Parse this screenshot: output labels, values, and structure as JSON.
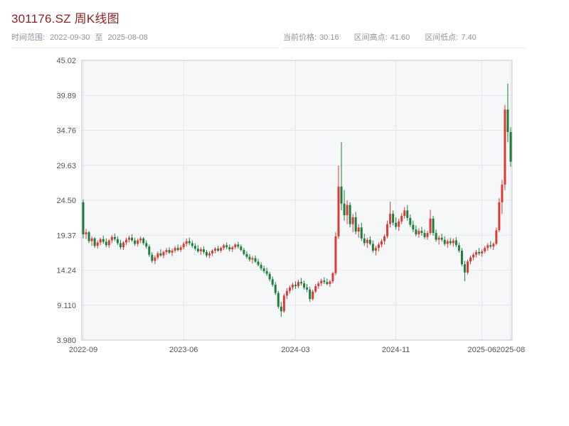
{
  "header": {
    "title": "301176.SZ 周K线图",
    "title_color": "#8b2222",
    "range": {
      "label": "时间范围:",
      "start": "2022-09-30",
      "to": "至",
      "end": "2025-08-08"
    },
    "stats": [
      {
        "label": "当前价格:",
        "value": "30.16"
      },
      {
        "label": "区间高点:",
        "value": "41.60"
      },
      {
        "label": "区间低点:",
        "value": "7.40"
      }
    ]
  },
  "chart_data": {
    "type": "candlestick",
    "title": "301176.SZ 周K线图",
    "period": "weekly",
    "date_range": [
      "2022-09-30",
      "2025-08-08"
    ],
    "current_price": 30.16,
    "range_high": 41.6,
    "range_low": 7.4,
    "ylim": [
      3.98,
      45.02
    ],
    "y_ticks": [
      "45.02",
      "39.89",
      "34.76",
      "29.63",
      "24.50",
      "19.37",
      "14.24",
      "9.110",
      "3.980"
    ],
    "x_ticks": [
      {
        "label": "2022-09",
        "index": 0
      },
      {
        "label": "2023-06",
        "index": 35
      },
      {
        "label": "2024-03",
        "index": 74
      },
      {
        "label": "2024-11",
        "index": 109
      },
      {
        "label": "2025-06",
        "index": 139
      },
      {
        "label": "2025-08",
        "index": 149
      }
    ],
    "colors": {
      "up": "#dc3c36",
      "down": "#1e7e3e",
      "plot_bg": "#f6f7f9",
      "grid": "#e4e7ec",
      "frame": "#c3c7cd",
      "tick_text": "#555555"
    },
    "candles": [
      [
        24.2,
        24.6,
        18.9,
        19.5
      ],
      [
        19.5,
        20.3,
        18.8,
        19.8
      ],
      [
        19.8,
        20.0,
        18.2,
        18.5
      ],
      [
        18.5,
        19.2,
        17.8,
        18.9
      ],
      [
        18.9,
        19.1,
        17.5,
        17.8
      ],
      [
        17.8,
        18.6,
        17.4,
        18.3
      ],
      [
        18.3,
        19.0,
        17.9,
        18.8
      ],
      [
        18.8,
        19.3,
        18.1,
        18.4
      ],
      [
        18.4,
        18.9,
        17.6,
        17.9
      ],
      [
        17.9,
        18.8,
        17.5,
        18.6
      ],
      [
        18.6,
        19.4,
        18.2,
        19.1
      ],
      [
        19.1,
        19.6,
        18.5,
        18.8
      ],
      [
        18.8,
        19.2,
        17.9,
        18.2
      ],
      [
        18.2,
        18.7,
        17.3,
        17.6
      ],
      [
        17.6,
        18.5,
        17.2,
        18.3
      ],
      [
        18.3,
        19.0,
        17.9,
        18.7
      ],
      [
        18.7,
        19.3,
        18.3,
        19.0
      ],
      [
        19.0,
        19.5,
        18.4,
        18.6
      ],
      [
        18.6,
        19.0,
        17.8,
        18.1
      ],
      [
        18.1,
        18.9,
        17.7,
        18.6
      ],
      [
        18.6,
        19.2,
        18.2,
        18.9
      ],
      [
        18.9,
        19.1,
        17.9,
        18.2
      ],
      [
        18.2,
        18.6,
        17.4,
        17.7
      ],
      [
        17.7,
        18.0,
        16.2,
        16.5
      ],
      [
        16.5,
        16.9,
        15.3,
        15.6
      ],
      [
        15.6,
        16.4,
        15.1,
        16.1
      ],
      [
        16.1,
        17.0,
        15.8,
        16.7
      ],
      [
        16.7,
        17.3,
        16.2,
        16.4
      ],
      [
        16.4,
        17.1,
        16.0,
        16.9
      ],
      [
        16.9,
        17.5,
        16.5,
        17.2
      ],
      [
        17.2,
        17.6,
        16.6,
        16.8
      ],
      [
        16.8,
        17.4,
        16.3,
        17.1
      ],
      [
        17.1,
        17.8,
        16.8,
        17.5
      ],
      [
        17.5,
        18.0,
        17.0,
        17.2
      ],
      [
        17.2,
        17.9,
        16.9,
        17.6
      ],
      [
        17.6,
        18.4,
        17.3,
        18.1
      ],
      [
        18.1,
        18.9,
        17.7,
        18.5
      ],
      [
        18.5,
        19.0,
        17.9,
        18.2
      ],
      [
        18.2,
        18.6,
        17.5,
        17.8
      ],
      [
        17.8,
        18.2,
        17.1,
        17.4
      ],
      [
        17.4,
        17.9,
        16.8,
        17.0
      ],
      [
        17.0,
        17.6,
        16.5,
        17.3
      ],
      [
        17.3,
        17.7,
        16.6,
        16.9
      ],
      [
        16.9,
        17.2,
        16.1,
        16.4
      ],
      [
        16.4,
        17.0,
        16.0,
        16.7
      ],
      [
        16.7,
        17.3,
        16.3,
        17.1
      ],
      [
        17.1,
        17.6,
        16.7,
        17.4
      ],
      [
        17.4,
        17.8,
        16.9,
        17.1
      ],
      [
        17.1,
        17.7,
        16.8,
        17.5
      ],
      [
        17.5,
        18.1,
        17.2,
        17.9
      ],
      [
        17.9,
        18.3,
        17.3,
        17.6
      ],
      [
        17.6,
        18.0,
        17.0,
        17.3
      ],
      [
        17.3,
        17.8,
        16.9,
        17.6
      ],
      [
        17.6,
        18.2,
        17.3,
        18.0
      ],
      [
        18.0,
        18.4,
        17.4,
        17.7
      ],
      [
        17.7,
        18.0,
        17.0,
        17.2
      ],
      [
        17.2,
        17.5,
        16.4,
        16.6
      ],
      [
        16.6,
        17.0,
        15.9,
        16.2
      ],
      [
        16.2,
        16.6,
        15.5,
        15.8
      ],
      [
        15.8,
        16.3,
        15.2,
        16.0
      ],
      [
        16.0,
        16.4,
        15.3,
        15.5
      ],
      [
        15.5,
        15.9,
        14.8,
        15.0
      ],
      [
        15.0,
        15.4,
        14.2,
        14.5
      ],
      [
        14.5,
        14.9,
        13.8,
        14.1
      ],
      [
        14.1,
        14.6,
        13.4,
        13.7
      ],
      [
        13.7,
        14.0,
        12.6,
        12.9
      ],
      [
        12.9,
        13.3,
        11.8,
        12.1
      ],
      [
        12.1,
        12.5,
        10.6,
        10.9
      ],
      [
        10.9,
        11.2,
        8.6,
        8.9
      ],
      [
        8.9,
        9.6,
        7.4,
        8.2
      ],
      [
        8.2,
        10.8,
        8.0,
        10.5
      ],
      [
        10.5,
        11.6,
        10.0,
        11.2
      ],
      [
        11.2,
        12.0,
        10.8,
        11.7
      ],
      [
        11.7,
        12.4,
        11.3,
        12.1
      ],
      [
        12.1,
        12.6,
        11.5,
        11.9
      ],
      [
        11.9,
        12.8,
        11.6,
        12.5
      ],
      [
        12.5,
        13.1,
        12.0,
        12.3
      ],
      [
        12.3,
        12.7,
        11.4,
        11.7
      ],
      [
        11.7,
        12.2,
        11.0,
        11.4
      ],
      [
        11.4,
        11.8,
        9.6,
        10.0
      ],
      [
        10.0,
        11.4,
        9.8,
        11.1
      ],
      [
        11.1,
        12.2,
        10.9,
        11.9
      ],
      [
        11.9,
        12.6,
        11.5,
        12.3
      ],
      [
        12.3,
        13.0,
        11.9,
        12.7
      ],
      [
        12.7,
        13.2,
        12.2,
        12.5
      ],
      [
        12.5,
        13.0,
        12.0,
        12.2
      ],
      [
        12.2,
        12.8,
        11.8,
        12.6
      ],
      [
        12.6,
        14.0,
        12.3,
        13.8
      ],
      [
        13.8,
        19.8,
        13.5,
        19.2
      ],
      [
        19.2,
        29.6,
        18.8,
        26.5
      ],
      [
        26.5,
        33.0,
        23.0,
        24.0
      ],
      [
        24.0,
        26.0,
        21.5,
        22.3
      ],
      [
        22.3,
        24.5,
        21.0,
        23.8
      ],
      [
        23.8,
        24.2,
        20.5,
        21.0
      ],
      [
        21.0,
        22.5,
        19.8,
        22.0
      ],
      [
        22.0,
        22.8,
        19.5,
        19.9
      ],
      [
        19.9,
        21.0,
        19.0,
        20.5
      ],
      [
        20.5,
        21.2,
        18.5,
        18.9
      ],
      [
        18.9,
        19.6,
        17.8,
        18.2
      ],
      [
        18.2,
        19.0,
        17.5,
        18.7
      ],
      [
        18.7,
        19.2,
        17.9,
        18.1
      ],
      [
        18.1,
        18.6,
        16.8,
        17.1
      ],
      [
        17.1,
        17.8,
        16.4,
        17.5
      ],
      [
        17.5,
        18.3,
        17.0,
        18.0
      ],
      [
        18.0,
        18.8,
        17.6,
        18.5
      ],
      [
        18.5,
        19.5,
        18.0,
        19.2
      ],
      [
        19.2,
        21.5,
        18.9,
        21.0
      ],
      [
        21.0,
        24.3,
        20.5,
        22.5
      ],
      [
        22.5,
        23.0,
        20.8,
        21.2
      ],
      [
        21.2,
        22.0,
        20.2,
        20.6
      ],
      [
        20.6,
        21.8,
        20.0,
        21.4
      ],
      [
        21.4,
        22.6,
        21.0,
        22.2
      ],
      [
        22.2,
        23.5,
        21.8,
        23.0
      ],
      [
        23.0,
        23.8,
        21.5,
        21.9
      ],
      [
        21.9,
        22.4,
        20.6,
        20.9
      ],
      [
        20.9,
        21.5,
        19.8,
        20.2
      ],
      [
        20.2,
        20.8,
        19.2,
        19.5
      ],
      [
        19.5,
        20.4,
        19.0,
        20.0
      ],
      [
        20.0,
        20.6,
        19.3,
        19.7
      ],
      [
        19.7,
        20.2,
        18.8,
        19.1
      ],
      [
        19.1,
        20.0,
        18.7,
        19.7
      ],
      [
        19.7,
        23.1,
        19.4,
        21.8
      ],
      [
        21.8,
        22.2,
        19.3,
        19.7
      ],
      [
        19.7,
        20.2,
        18.4,
        18.7
      ],
      [
        18.7,
        19.3,
        18.0,
        19.0
      ],
      [
        19.0,
        19.6,
        18.4,
        18.7
      ],
      [
        18.7,
        19.2,
        17.8,
        18.1
      ],
      [
        18.1,
        18.8,
        17.5,
        18.5
      ],
      [
        18.5,
        19.0,
        17.9,
        18.2
      ],
      [
        18.2,
        18.9,
        17.7,
        18.6
      ],
      [
        18.6,
        19.1,
        17.6,
        17.9
      ],
      [
        17.9,
        18.3,
        16.8,
        17.1
      ],
      [
        17.1,
        17.5,
        14.8,
        15.1
      ],
      [
        15.1,
        15.6,
        12.6,
        13.9
      ],
      [
        13.9,
        15.8,
        13.6,
        15.5
      ],
      [
        15.5,
        16.4,
        15.1,
        16.1
      ],
      [
        16.1,
        16.8,
        15.7,
        16.5
      ],
      [
        16.5,
        17.2,
        16.1,
        16.9
      ],
      [
        16.9,
        17.5,
        16.4,
        16.7
      ],
      [
        16.7,
        17.3,
        16.2,
        17.0
      ],
      [
        17.0,
        17.8,
        16.7,
        17.5
      ],
      [
        17.5,
        18.2,
        17.1,
        17.9
      ],
      [
        17.9,
        18.5,
        17.4,
        17.7
      ],
      [
        17.7,
        18.3,
        17.2,
        18.1
      ],
      [
        18.1,
        20.5,
        17.9,
        20.1
      ],
      [
        20.1,
        24.8,
        19.8,
        24.2
      ],
      [
        24.2,
        27.5,
        22.5,
        26.8
      ],
      [
        26.8,
        38.5,
        26.0,
        37.8
      ],
      [
        37.8,
        41.6,
        33.0,
        34.5
      ],
      [
        34.5,
        35.2,
        29.4,
        30.16
      ]
    ]
  }
}
